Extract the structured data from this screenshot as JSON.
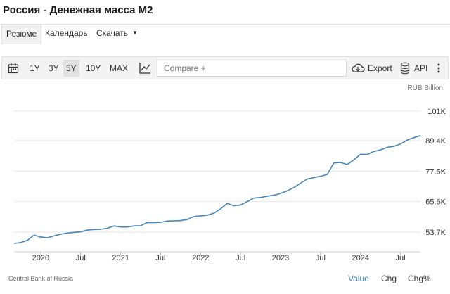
{
  "title": "Россия - Денежная масса M2",
  "tabs": [
    {
      "label": "Резюме",
      "active": true
    },
    {
      "label": "Календарь",
      "active": false
    },
    {
      "label": "Скачать",
      "active": false,
      "dropdown": true
    }
  ],
  "toolbar": {
    "calendar_icon": "calendar-icon",
    "ranges": [
      "1Y",
      "3Y",
      "5Y",
      "10Y",
      "MAX"
    ],
    "selected_range": "5Y",
    "chart_type_icon": "line-chart-icon",
    "compare_placeholder": "Compare +",
    "export_icon": "cloud-download-icon",
    "export_label": "Export",
    "api_icon": "database-icon",
    "api_label": "API",
    "more_icon": "vertical-dots-icon"
  },
  "unit_label": "RUB Billion",
  "source": "Central Bank of Russia",
  "bottom_links": [
    "Value",
    "Chg",
    "Chg%"
  ],
  "colors": {
    "line": "#4682b4",
    "active_link": "#2f73b5",
    "grid": "#e6e6e6"
  },
  "chart_data": {
    "type": "line",
    "x_start": "2019-09",
    "x_end": "2024-10",
    "ylim": [
      46000,
      107000
    ],
    "y_ticks": [
      53700,
      65600,
      77500,
      89400,
      101000
    ],
    "y_tick_labels": [
      "53.7K",
      "65.6K",
      "77.5K",
      "89.4K",
      "101K"
    ],
    "x_ticks": [
      "2020-01",
      "2020-07",
      "2021-01",
      "2021-07",
      "2022-01",
      "2022-07",
      "2023-01",
      "2023-07",
      "2024-01",
      "2024-07"
    ],
    "x_tick_labels": [
      "2020",
      "Jul",
      "2021",
      "Jul",
      "2022",
      "Jul",
      "2023",
      "Jul",
      "2024",
      "Jul"
    ],
    "grid": "horizontal",
    "series": [
      {
        "dates": [
          "2019-09",
          "2019-10",
          "2019-11",
          "2019-12",
          "2020-01",
          "2020-02",
          "2020-03",
          "2020-04",
          "2020-05",
          "2020-06",
          "2020-07",
          "2020-08",
          "2020-09",
          "2020-10",
          "2020-11",
          "2020-12",
          "2021-01",
          "2021-02",
          "2021-03",
          "2021-04",
          "2021-05",
          "2021-06",
          "2021-07",
          "2021-08",
          "2021-09",
          "2021-10",
          "2021-11",
          "2021-12",
          "2022-01",
          "2022-02",
          "2022-03",
          "2022-04",
          "2022-05",
          "2022-06",
          "2022-07",
          "2022-08",
          "2022-09",
          "2022-10",
          "2022-11",
          "2022-12",
          "2023-01",
          "2023-02",
          "2023-03",
          "2023-04",
          "2023-05",
          "2023-06",
          "2023-07",
          "2023-08",
          "2023-09",
          "2023-10",
          "2023-11",
          "2023-12",
          "2024-01",
          "2024-02",
          "2024-03",
          "2024-04",
          "2024-05",
          "2024-06",
          "2024-07",
          "2024-08",
          "2024-09",
          "2024-10"
        ],
        "values": [
          49300,
          49600,
          50500,
          52500,
          51800,
          51500,
          52200,
          52900,
          53300,
          53600,
          53800,
          54500,
          54700,
          54800,
          55200,
          56100,
          55700,
          55700,
          56100,
          56200,
          57400,
          57400,
          57500,
          58000,
          58100,
          58200,
          58600,
          59800,
          60000,
          60300,
          61100,
          62800,
          64900,
          64000,
          64300,
          65600,
          67000,
          67200,
          67700,
          68100,
          68800,
          69800,
          71100,
          72800,
          74400,
          75000,
          75500,
          76200,
          80700,
          80900,
          80100,
          81900,
          84100,
          84000,
          85200,
          85800,
          86800,
          87200,
          88100,
          89600,
          90600,
          91400
        ]
      }
    ]
  }
}
